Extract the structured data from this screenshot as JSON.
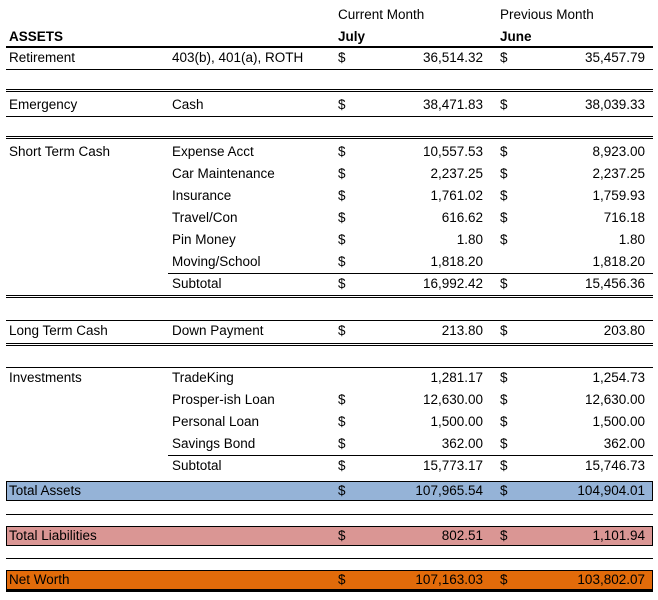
{
  "header": {
    "current": "Current Month",
    "previous": "Previous Month",
    "title": "ASSETS",
    "current_month": "July",
    "previous_month": "June"
  },
  "rows": [
    {
      "label": "Retirement",
      "item": "403(b), 401(a), ROTH",
      "cur_sign": "$",
      "cur": "36,514.32",
      "prev_sign": "$",
      "prev": "35,457.79"
    },
    {
      "label": "Emergency",
      "item": "Cash",
      "cur_sign": "$",
      "cur": "38,471.83",
      "prev_sign": "$",
      "prev": "38,039.33"
    },
    {
      "label": "Short Term Cash",
      "item": "Expense Acct",
      "cur_sign": "$",
      "cur": "10,557.53",
      "prev_sign": "$",
      "prev": "8,923.00"
    },
    {
      "item": "Car Maintenance",
      "cur_sign": "$",
      "cur": "2,237.25",
      "prev_sign": "$",
      "prev": "2,237.25"
    },
    {
      "item": "Insurance",
      "cur_sign": "$",
      "cur": "1,761.02",
      "prev_sign": "$",
      "prev": "1,759.93"
    },
    {
      "item": "Travel/Con",
      "cur_sign": "$",
      "cur": "616.62",
      "prev_sign": "$",
      "prev": "716.18"
    },
    {
      "item": "Pin Money",
      "cur_sign": "$",
      "cur": "1.80",
      "prev_sign": "$",
      "prev": "1.80"
    },
    {
      "item": "Moving/School",
      "cur_sign": "$",
      "cur": "1,818.20",
      "prev": "1,818.20"
    },
    {
      "item": "Subtotal",
      "cur_sign": "$",
      "cur": "16,992.42",
      "prev_sign": "$",
      "prev": "15,456.36"
    },
    {
      "label": "Long Term Cash",
      "item": "Down Payment",
      "cur_sign": "$",
      "cur": "213.80",
      "prev_sign": "$",
      "prev": "203.80"
    },
    {
      "label": "Investments",
      "item": "TradeKing",
      "cur": "1,281.17",
      "prev_sign": "$",
      "prev": "1,254.73"
    },
    {
      "item": "Prosper-ish Loan",
      "cur_sign": "$",
      "cur": "12,630.00",
      "prev_sign": "$",
      "prev": "12,630.00"
    },
    {
      "item": "Personal Loan",
      "cur_sign": "$",
      "cur": "1,500.00",
      "prev_sign": "$",
      "prev": "1,500.00"
    },
    {
      "item": "Savings Bond",
      "cur_sign": "$",
      "cur": "362.00",
      "prev_sign": "$",
      "prev": "362.00"
    },
    {
      "item": "Subtotal",
      "cur_sign": "$",
      "cur": "15,773.17",
      "prev_sign": "$",
      "prev": "15,746.73"
    },
    {
      "label": "Total Assets",
      "cur_sign": "$",
      "cur": "107,965.54",
      "prev_sign": "$",
      "prev": "104,904.01",
      "color": "#95b3d7"
    },
    {
      "label": "Total Liabilities",
      "cur_sign": "$",
      "cur": "802.51",
      "prev_sign": "$",
      "prev": "1,101.94",
      "color": "#da9694"
    },
    {
      "label": "Net Worth",
      "cur_sign": "$",
      "cur": "107,163.03",
      "prev_sign": "$",
      "prev": "103,802.07",
      "color": "#e26b0a"
    }
  ]
}
